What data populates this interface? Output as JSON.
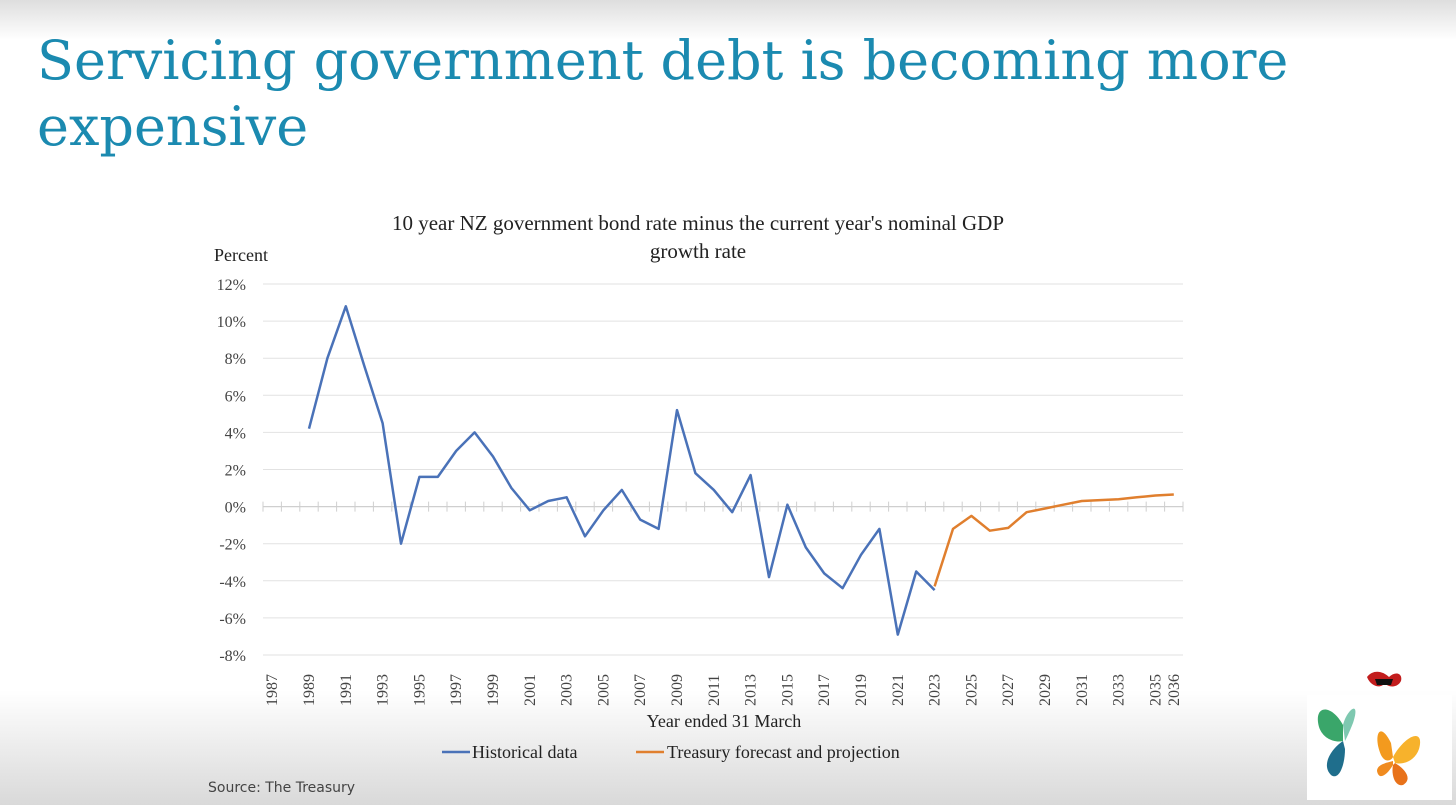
{
  "slide": {
    "title": "Servicing government debt is becoming more expensive",
    "source": "Source: The Treasury",
    "title_color": "#1b8ab0"
  },
  "chart_data": {
    "type": "line",
    "title": "10 year NZ government bond rate minus the current year's nominal GDP growth rate",
    "title_lines": [
      "10 year NZ government bond rate minus the current year's nominal GDP",
      "growth rate"
    ],
    "ylabel": "Percent",
    "xlabel": "Year ended 31 March",
    "ylim": [
      -8,
      12
    ],
    "yticks": [
      12,
      10,
      8,
      6,
      4,
      2,
      0,
      -2,
      -4,
      -6,
      -8
    ],
    "ytick_labels": [
      "12%",
      "10%",
      "8%",
      "6%",
      "4%",
      "2%",
      "0%",
      "-2%",
      "-4%",
      "-6%",
      "-8%"
    ],
    "x_categories": [
      1987,
      1988,
      1989,
      1990,
      1991,
      1992,
      1993,
      1994,
      1995,
      1996,
      1997,
      1998,
      1999,
      2000,
      2001,
      2002,
      2003,
      2004,
      2005,
      2006,
      2007,
      2008,
      2009,
      2010,
      2011,
      2012,
      2013,
      2014,
      2015,
      2016,
      2017,
      2018,
      2019,
      2020,
      2021,
      2022,
      2023,
      2024,
      2025,
      2026,
      2027,
      2028,
      2029,
      2030,
      2031,
      2032,
      2033,
      2034,
      2035,
      2036
    ],
    "xtick_labels": [
      "1987",
      "1989",
      "1991",
      "1993",
      "1995",
      "1997",
      "1999",
      "2001",
      "2003",
      "2005",
      "2007",
      "2009",
      "2011",
      "2013",
      "2015",
      "2017",
      "2019",
      "2021",
      "2023",
      "2025",
      "2027",
      "2029",
      "2031",
      "2033",
      "2035",
      "2036"
    ],
    "grid": true,
    "legend_position": "bottom",
    "series": [
      {
        "name": "Historical data",
        "color": "#4a72b8",
        "x": [
          1989,
          1990,
          1991,
          1992,
          1993,
          1994,
          1995,
          1996,
          1997,
          1998,
          1999,
          2000,
          2001,
          2002,
          2003,
          2004,
          2005,
          2006,
          2007,
          2008,
          2009,
          2010,
          2011,
          2012,
          2013,
          2014,
          2015,
          2016,
          2017,
          2018,
          2019,
          2020,
          2021,
          2022,
          2023
        ],
        "values": [
          4.2,
          8.0,
          10.8,
          7.6,
          4.5,
          -2.0,
          1.6,
          1.6,
          3.0,
          4.0,
          2.7,
          1.0,
          -0.2,
          0.3,
          0.5,
          -1.6,
          -0.2,
          0.9,
          -0.7,
          -1.2,
          5.2,
          1.8,
          0.9,
          -0.3,
          1.7,
          -3.8,
          0.1,
          -2.2,
          -3.6,
          -4.4,
          -2.6,
          -1.2,
          -6.9,
          -3.5,
          -4.5
        ]
      },
      {
        "name": "Treasury forecast and projection",
        "color": "#e07f2e",
        "x": [
          2023,
          2024,
          2025,
          2026,
          2027,
          2028,
          2029,
          2030,
          2031,
          2032,
          2033,
          2034,
          2035,
          2036
        ],
        "values": [
          -4.3,
          -1.2,
          -0.5,
          -1.3,
          -1.15,
          -0.3,
          -0.1,
          0.1,
          0.3,
          0.35,
          0.4,
          0.5,
          0.6,
          0.65
        ]
      }
    ]
  }
}
